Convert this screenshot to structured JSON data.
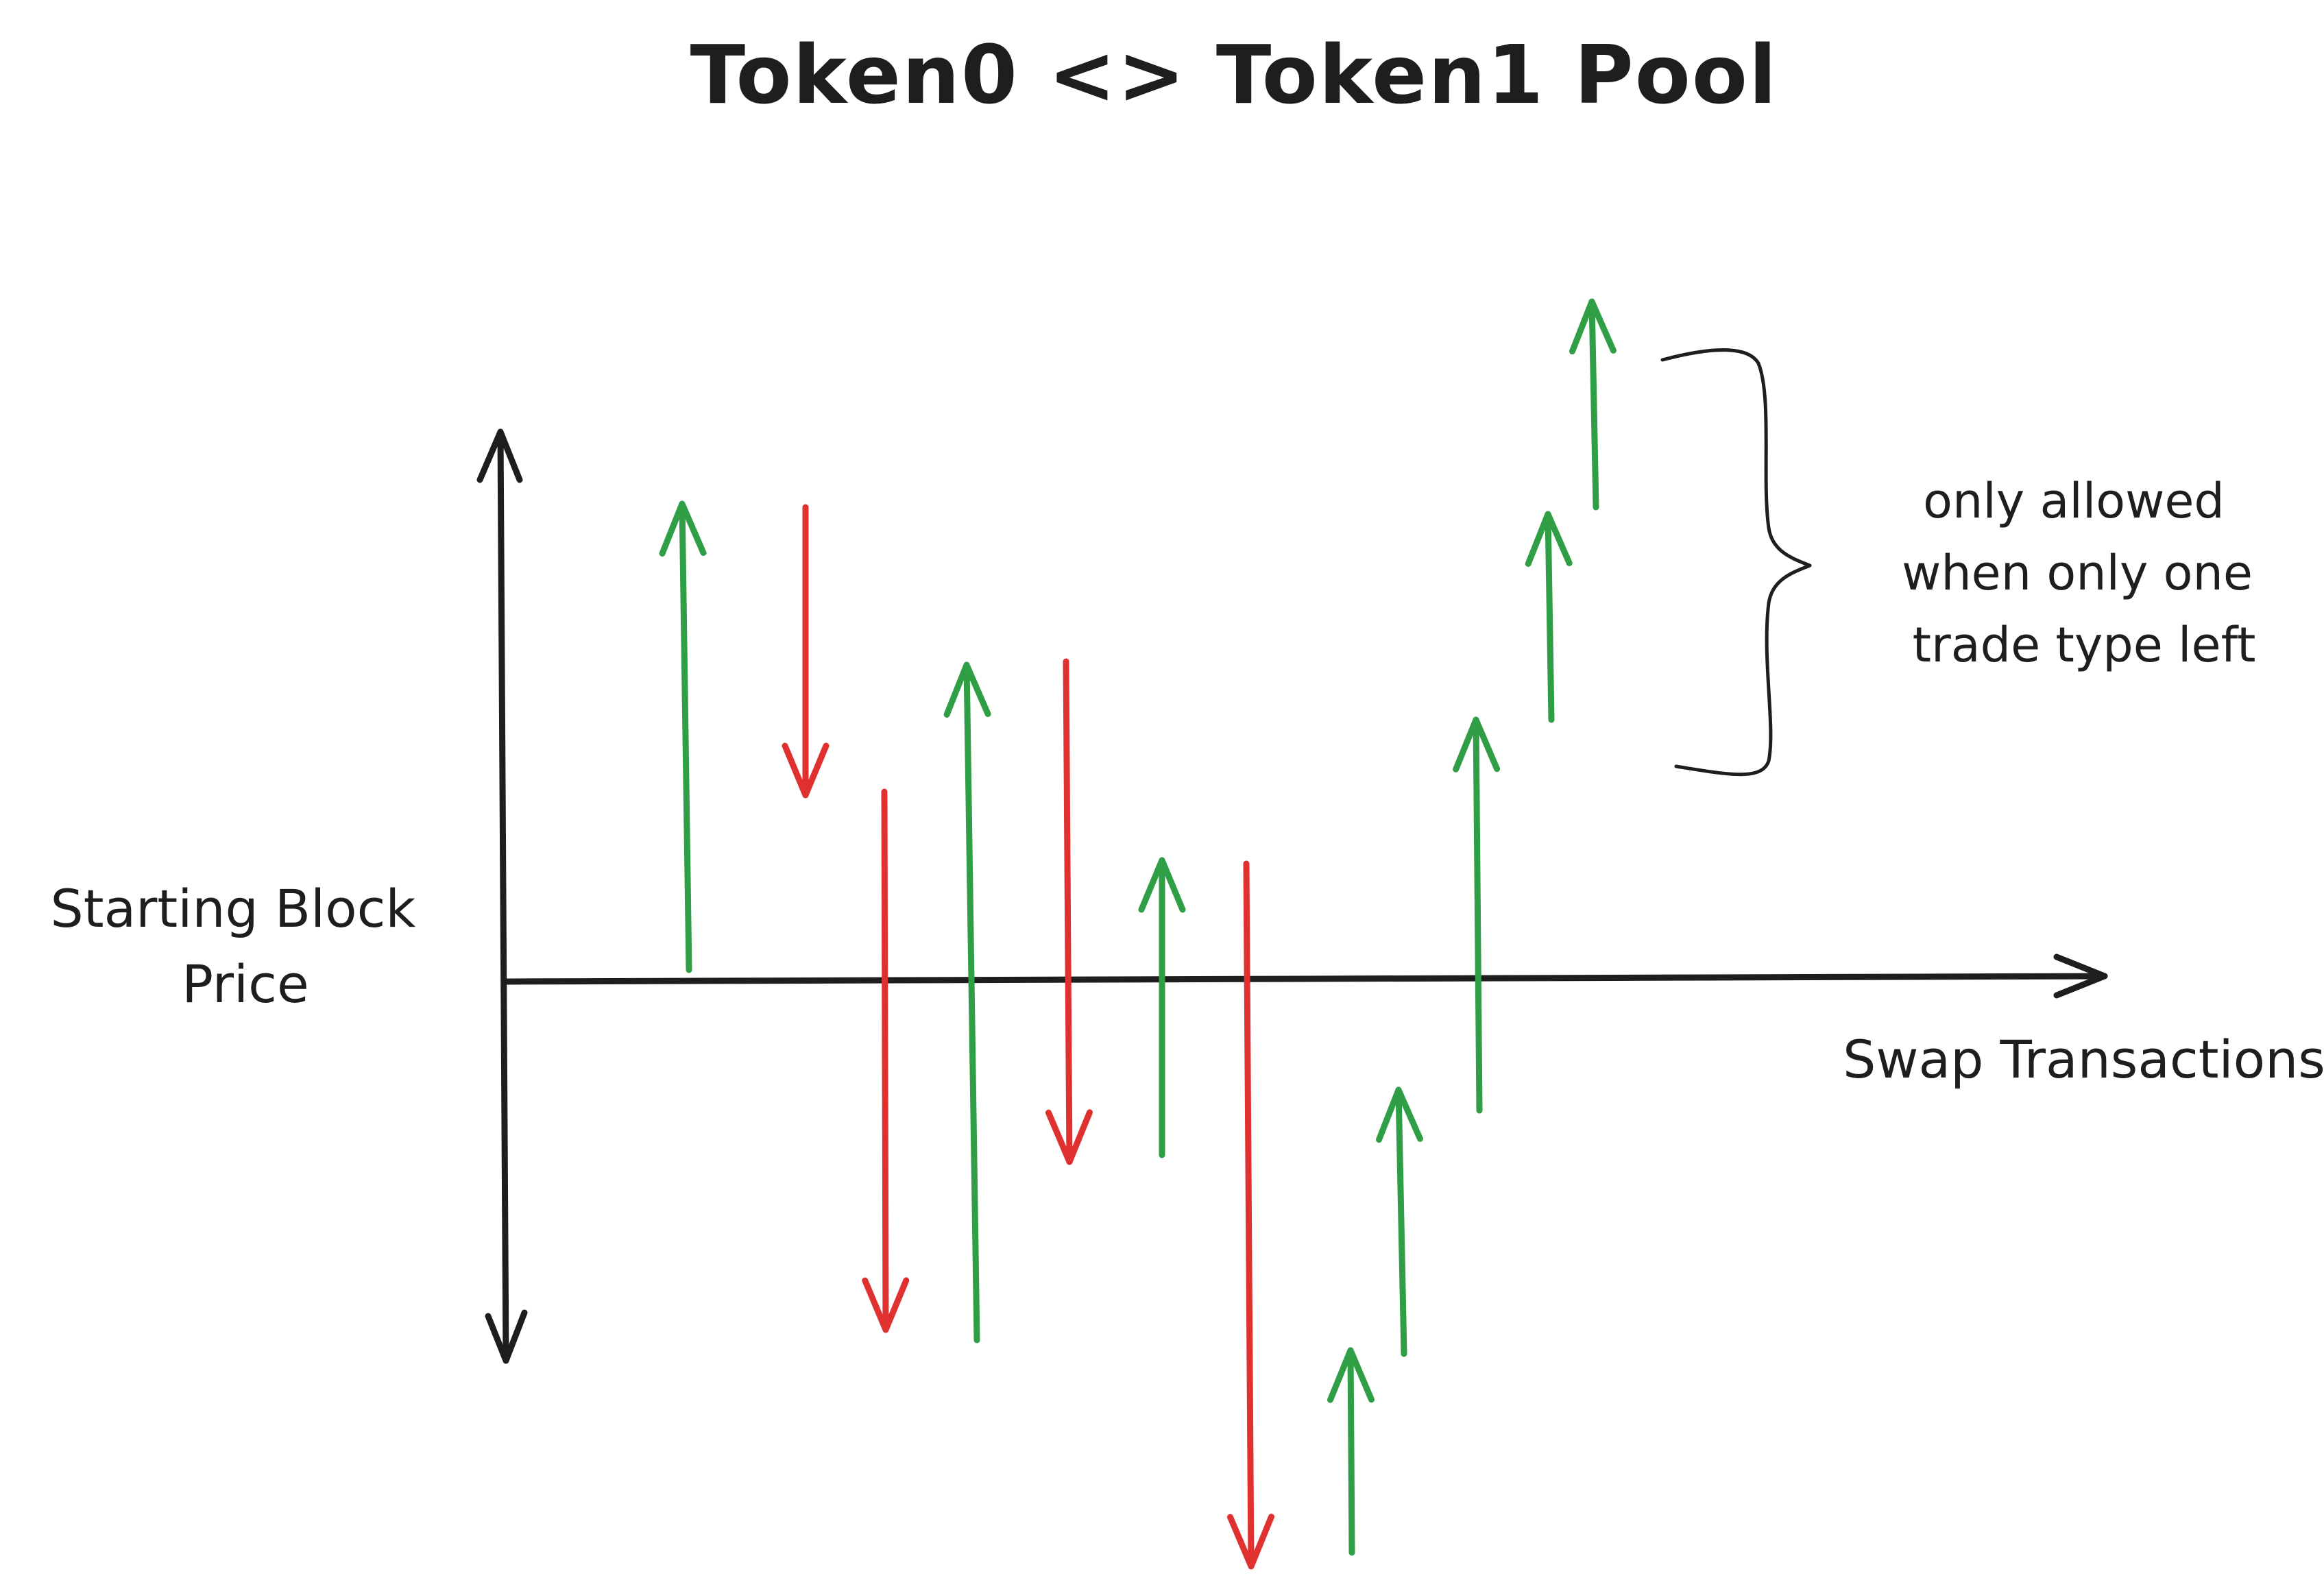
{
  "title": "Token0 <> Token1 Pool",
  "y_axis_label_line1": "Starting Block",
  "y_axis_label_line2": "Price",
  "x_axis_label": "Swap Transactions",
  "note": {
    "line1": "only allowed",
    "line2": "when only one",
    "line3": "trade type left"
  },
  "colors": {
    "axis": "#1e1e1e",
    "buy": "#2f9e44",
    "sell": "#e03131",
    "background": "#ffffff"
  },
  "swaps": [
    {
      "direction": "up",
      "color": "buy"
    },
    {
      "direction": "down",
      "color": "sell"
    },
    {
      "direction": "down",
      "color": "sell"
    },
    {
      "direction": "up",
      "color": "buy"
    },
    {
      "direction": "down",
      "color": "sell"
    },
    {
      "direction": "up",
      "color": "buy"
    },
    {
      "direction": "down",
      "color": "sell"
    },
    {
      "direction": "up",
      "color": "buy"
    },
    {
      "direction": "up",
      "color": "buy"
    },
    {
      "direction": "up",
      "color": "buy"
    },
    {
      "direction": "up",
      "color": "buy"
    },
    {
      "direction": "up",
      "color": "buy"
    }
  ]
}
